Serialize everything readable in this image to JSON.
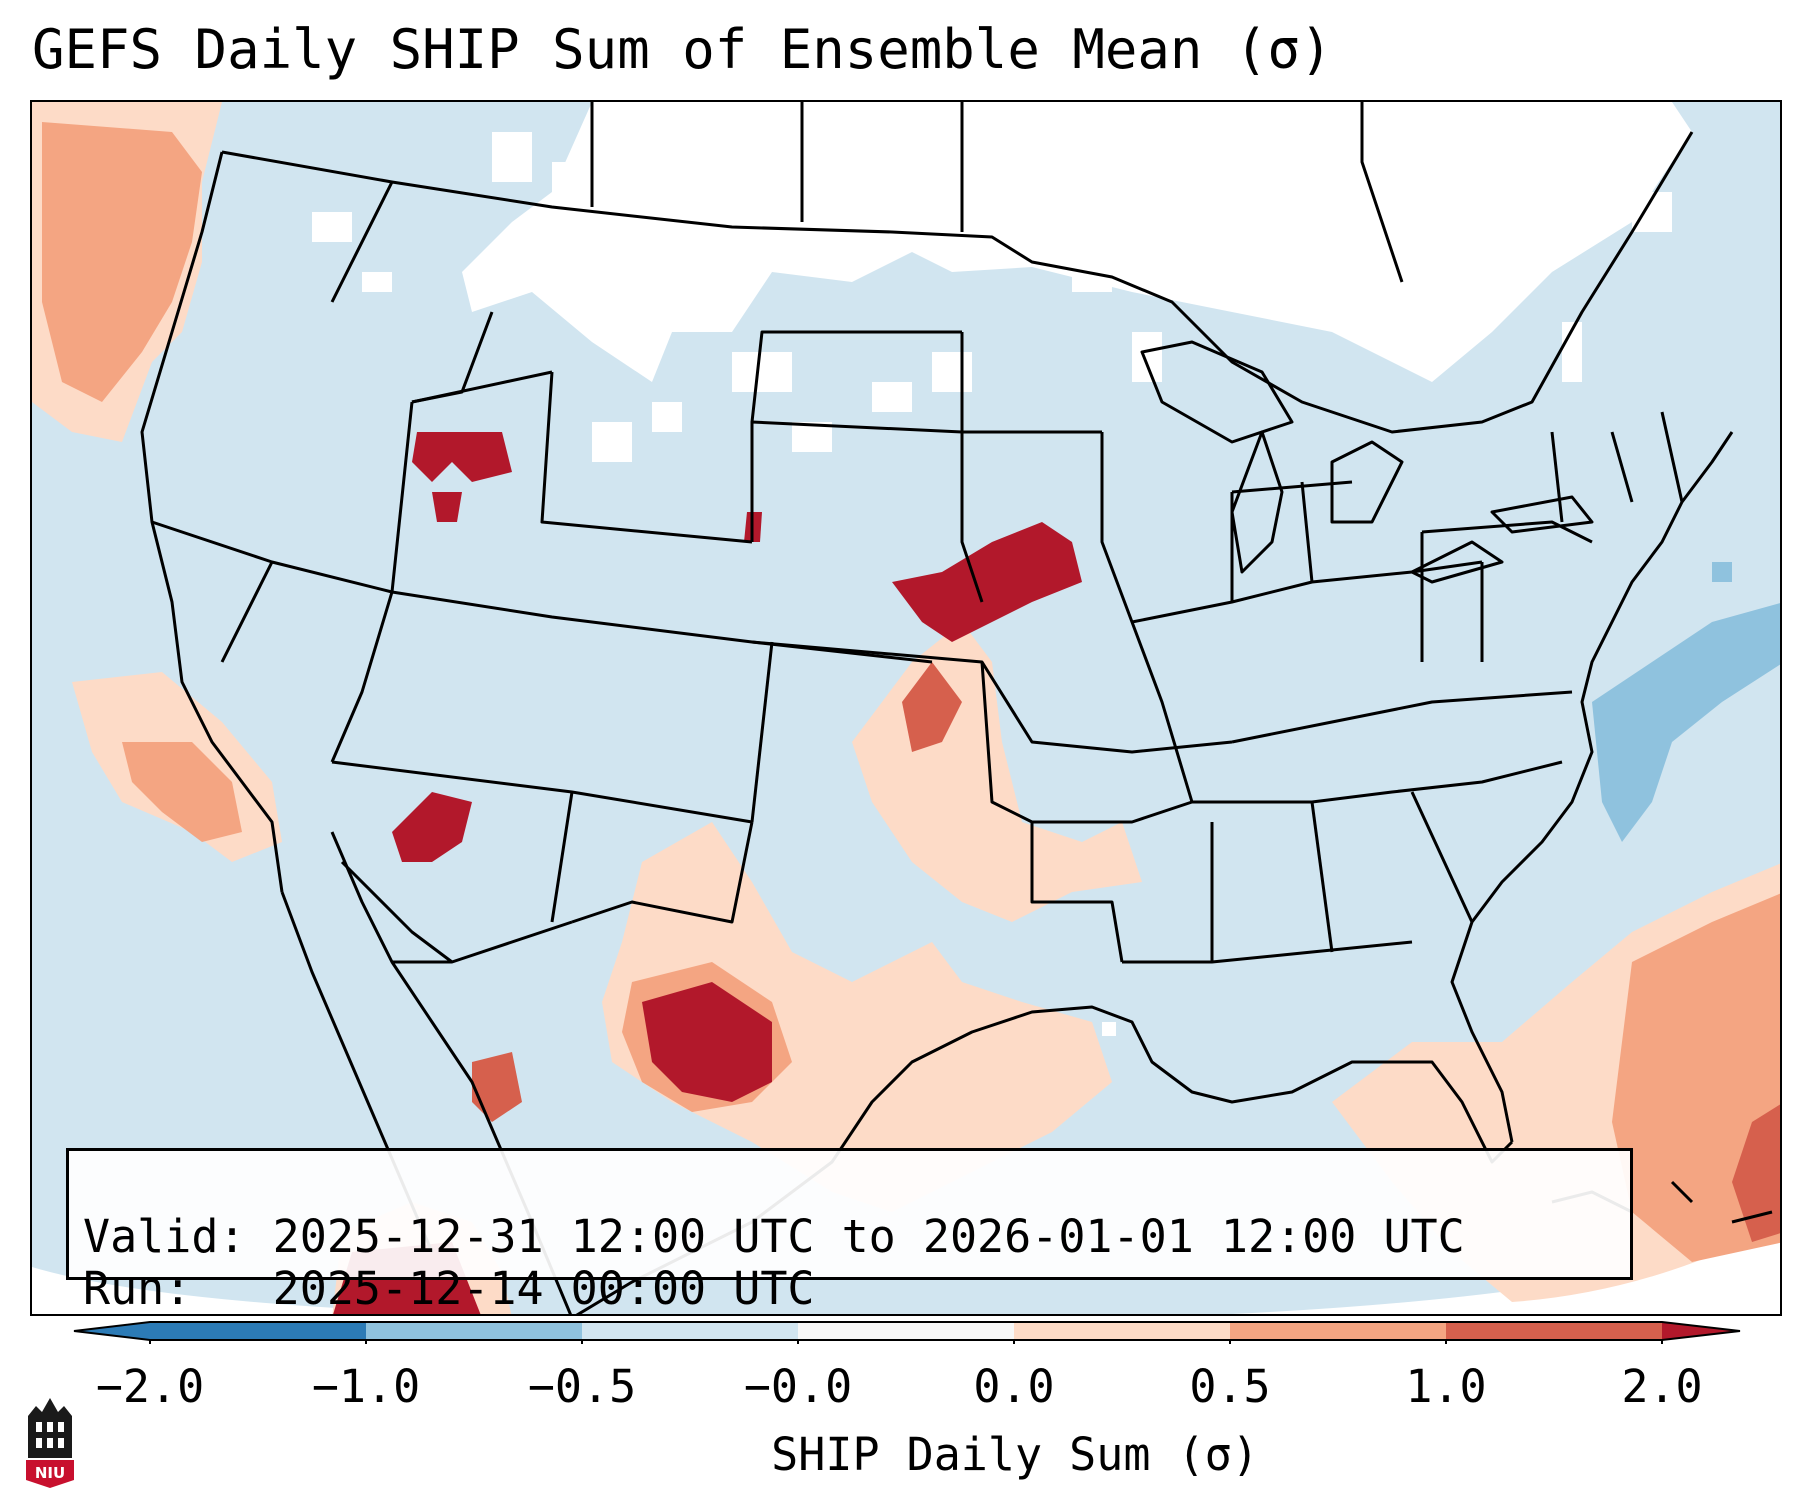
{
  "title": "GEFS Daily SHIP Sum of Ensemble Mean (σ)",
  "info": {
    "valid_label": "Valid:",
    "valid_value": "2025-12-31 12:00 UTC to 2026-01-01 12:00 UTC",
    "run_label": "Run:",
    "run_value": "2025-12-14 00:00 UTC"
  },
  "colorbar": {
    "label": "SHIP Daily Sum (σ)",
    "ticks": [
      "−2.0",
      "−1.0",
      "−0.5",
      "−0.0",
      "0.0",
      "0.5",
      "1.0",
      "2.0"
    ],
    "colors": {
      "below_min": "#2c7bb6",
      "bin_-2_-1": "#2c7bb6",
      "bin_-1_-0.5": "#8fc2de",
      "bin_-0.5_0": "#d1e5f0",
      "bin_0_0.5": "#fddbc7",
      "bin_0.5_1": "#f4a582",
      "bin_1_2": "#d6604d",
      "above_max": "#b2182b"
    }
  },
  "chart_data": {
    "type": "heatmap",
    "title": "GEFS Daily SHIP Sum of Ensemble Mean (σ)",
    "variable": "SHIP Daily Sum (σ)",
    "levels": [
      -2.0,
      -1.0,
      -0.5,
      -0.0,
      0.0,
      0.5,
      1.0,
      2.0
    ],
    "extend": "both",
    "domain": "Continental United States"
  },
  "logo": {
    "text": "NIU"
  }
}
